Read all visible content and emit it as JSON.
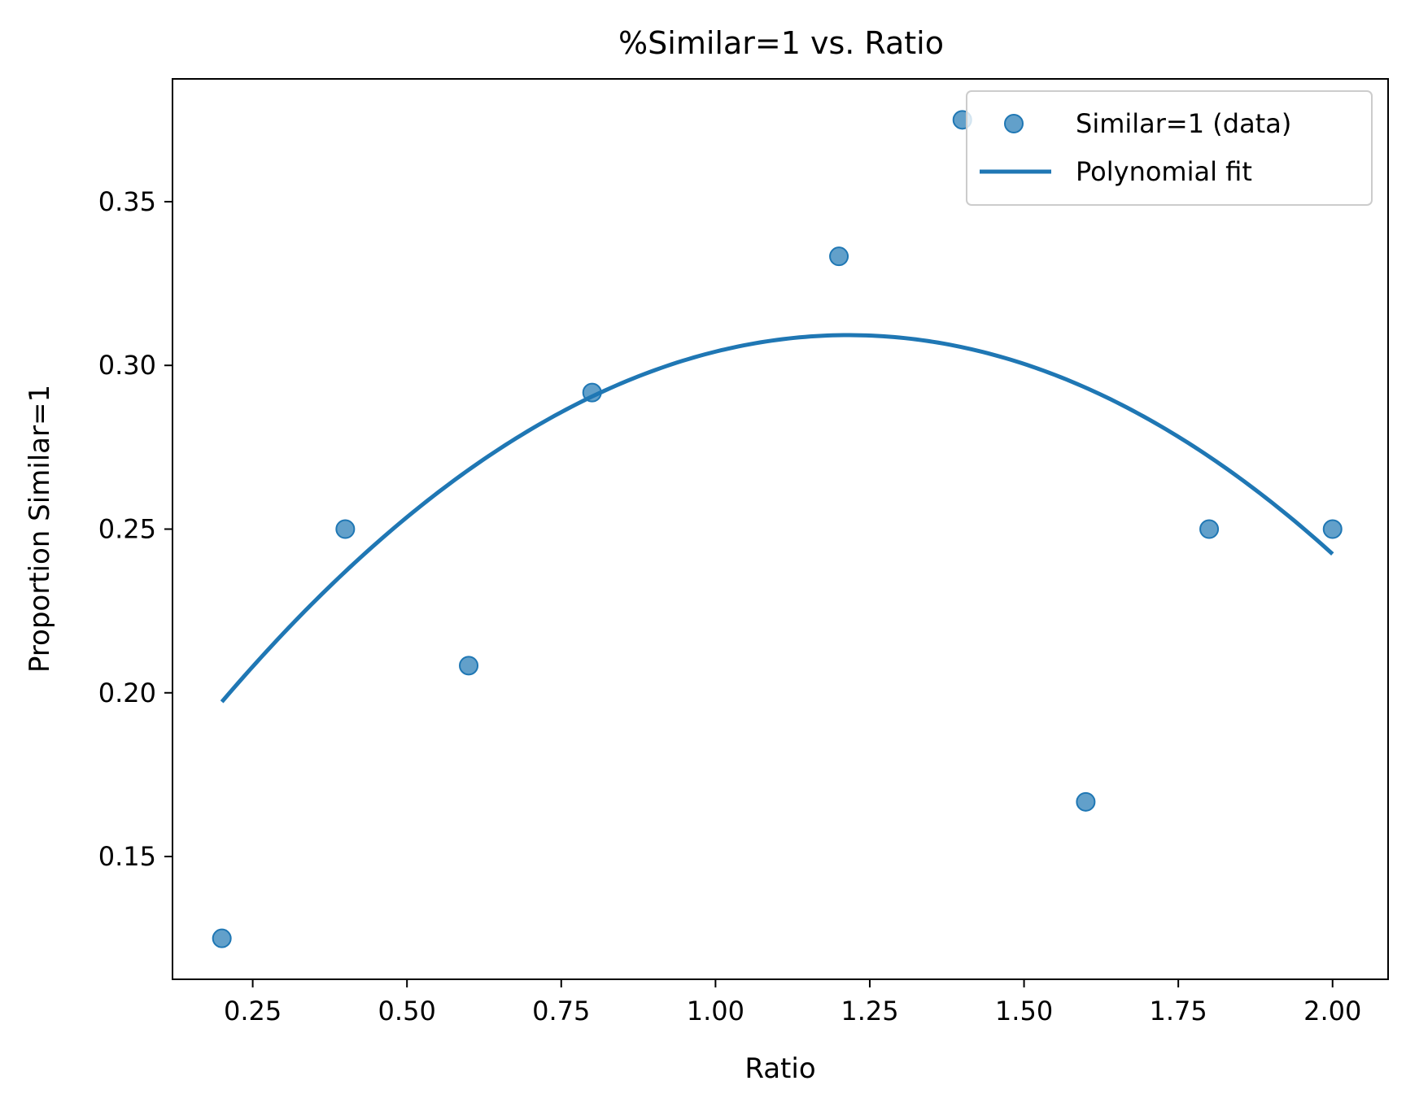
{
  "chart_data": {
    "type": "scatter",
    "title": "%Similar=1 vs. Ratio",
    "xlabel": "Ratio",
    "ylabel": "Proportion Similar=1",
    "xlim": [
      0.12,
      2.09
    ],
    "ylim": [
      0.1125,
      0.3875
    ],
    "x_ticks": [
      "0.25",
      "0.50",
      "0.75",
      "1.00",
      "1.25",
      "1.50",
      "1.75",
      "2.00"
    ],
    "y_ticks": [
      "0.15",
      "0.20",
      "0.25",
      "0.30",
      "0.35"
    ],
    "grid": false,
    "legend_position": "top-right",
    "colors": {
      "points": "#1f77b4",
      "fit_line": "#1f77b4"
    },
    "series": [
      {
        "name": "Similar=1 (data)",
        "kind": "scatter",
        "x": [
          0.2,
          0.4,
          0.6,
          0.8,
          1.2,
          1.4,
          1.6,
          1.8,
          2.0
        ],
        "y": [
          0.125,
          0.25,
          0.2083,
          0.2917,
          0.3333,
          0.375,
          0.1667,
          0.25,
          0.25
        ]
      },
      {
        "name": "Polynomial fit",
        "kind": "line",
        "coefficients": [
          -0.1086,
          0.264,
          0.1488
        ]
      }
    ]
  }
}
